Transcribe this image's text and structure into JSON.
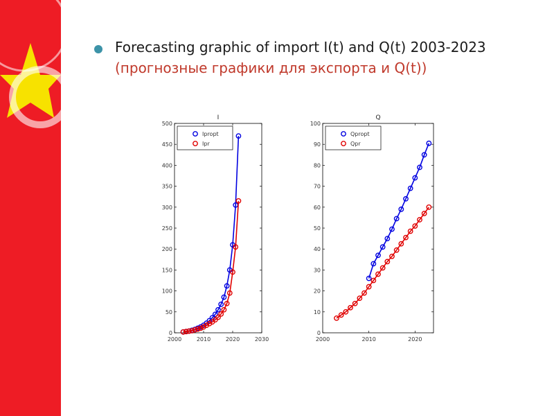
{
  "slide": {
    "title_line1": "Forecasting graphic of import I(t) and  Q(t) 2003-2023",
    "title_line2": "(прогнозные графики для экспорта и Q(t))"
  },
  "colors": {
    "sidebar_red": "#ee1c25",
    "star_yellow": "#f7e200",
    "bullet": "#3d93a8",
    "subtitle": "#c0392b",
    "series_blue": "#0000e0",
    "series_red": "#e00000"
  },
  "chart_data": [
    {
      "type": "line",
      "title": "I",
      "xlim": [
        2000,
        2030
      ],
      "ylim": [
        0,
        500
      ],
      "xticks": [
        2000,
        2010,
        2020,
        2030
      ],
      "yticks": [
        0,
        50,
        100,
        150,
        200,
        250,
        300,
        350,
        400,
        450,
        500
      ],
      "legend": "top-left",
      "grid": false,
      "series": [
        {
          "name": "Ipropt",
          "color": "#0000e0",
          "x": [
            2003,
            2004,
            2005,
            2006,
            2007,
            2008,
            2009,
            2010,
            2011,
            2012,
            2013,
            2014,
            2015,
            2016,
            2017,
            2018,
            2019,
            2020,
            2021,
            2022,
            2023
          ],
          "y": [
            2,
            3,
            4,
            6,
            8,
            11,
            14,
            18,
            23,
            29,
            36,
            44,
            55,
            68,
            85,
            112,
            150,
            210,
            305,
            470,
            null
          ]
        },
        {
          "name": "Ipr",
          "color": "#e00000",
          "x": [
            2003,
            2004,
            2005,
            2006,
            2007,
            2008,
            2009,
            2010,
            2011,
            2012,
            2013,
            2014,
            2015,
            2016,
            2017,
            2018,
            2019,
            2020,
            2021,
            2022,
            2023
          ],
          "y": [
            2,
            3,
            4,
            5,
            7,
            9,
            11,
            14,
            18,
            22,
            26,
            31,
            37,
            45,
            55,
            70,
            95,
            145,
            205,
            315,
            null
          ]
        }
      ]
    },
    {
      "type": "line",
      "title": "Q",
      "xlim": [
        2000,
        2024
      ],
      "ylim": [
        0,
        100
      ],
      "xticks": [
        2000,
        2010,
        2020
      ],
      "yticks": [
        0,
        10,
        20,
        30,
        40,
        50,
        60,
        70,
        80,
        90,
        100
      ],
      "legend": "top-left",
      "grid": false,
      "series": [
        {
          "name": "Qpropt",
          "color": "#0000e0",
          "x": [
            2010,
            2011,
            2012,
            2013,
            2014,
            2015,
            2016,
            2017,
            2018,
            2019,
            2020,
            2021,
            2022,
            2023
          ],
          "y": [
            26,
            33,
            37,
            41,
            45,
            49.5,
            54.5,
            59,
            64,
            69,
            74,
            79,
            85,
            90.5
          ]
        },
        {
          "name": "Qpr",
          "color": "#e00000",
          "x": [
            2003,
            2004,
            2005,
            2006,
            2007,
            2008,
            2009,
            2010,
            2011,
            2012,
            2013,
            2014,
            2015,
            2016,
            2017,
            2018,
            2019,
            2020,
            2021,
            2022,
            2023
          ],
          "y": [
            7,
            8.5,
            10,
            12,
            14,
            16.5,
            19,
            22,
            25,
            28,
            31,
            34,
            36.5,
            39.5,
            42.5,
            45.5,
            48.5,
            51,
            54,
            57,
            60
          ]
        }
      ]
    }
  ]
}
